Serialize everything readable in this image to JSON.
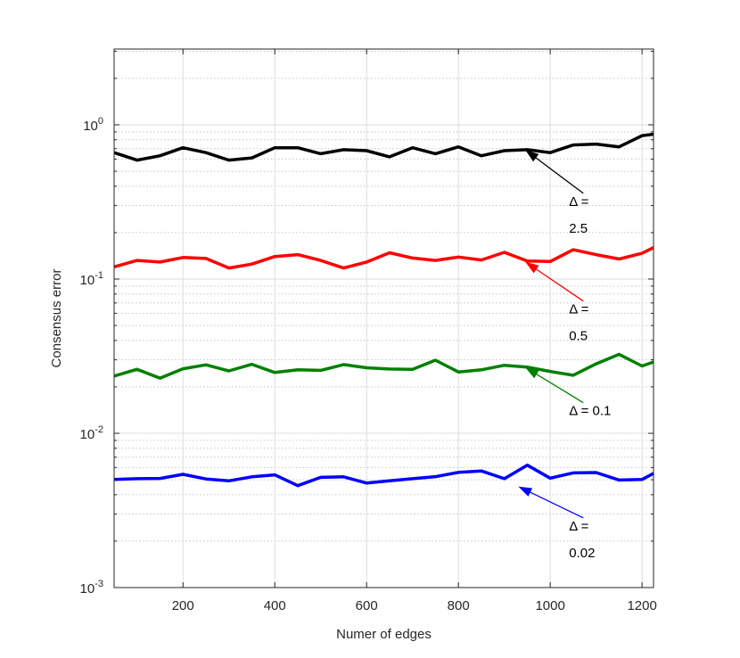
{
  "chart_data": {
    "type": "line",
    "xlabel": "Numer of edges",
    "ylabel": "Consensus error",
    "xlim": [
      50,
      1225
    ],
    "ylim": [
      0.001,
      3.1
    ],
    "yscale": "log",
    "grid": true,
    "minor_grid": true,
    "x_ticks": [
      200,
      400,
      600,
      800,
      1000,
      1200
    ],
    "x_tick_labels": [
      "200",
      "400",
      "600",
      "800",
      "1000",
      "1200"
    ],
    "y_ticks": [
      0.001,
      0.01,
      0.1,
      1
    ],
    "y_tick_labels": [
      {
        "base": "10",
        "exp": "-3"
      },
      {
        "base": "10",
        "exp": "-2"
      },
      {
        "base": "10",
        "exp": "-1"
      },
      {
        "base": "10",
        "exp": "0"
      }
    ],
    "x": [
      50,
      100,
      150,
      200,
      250,
      300,
      350,
      400,
      450,
      500,
      550,
      600,
      650,
      700,
      750,
      800,
      850,
      900,
      950,
      1000,
      1050,
      1100,
      1150,
      1200,
      1225
    ],
    "series": [
      {
        "color": "#000000",
        "values": [
          0.66,
          0.59,
          0.63,
          0.71,
          0.66,
          0.59,
          0.61,
          0.71,
          0.71,
          0.65,
          0.69,
          0.68,
          0.62,
          0.71,
          0.65,
          0.72,
          0.63,
          0.68,
          0.69,
          0.66,
          0.74,
          0.75,
          0.72,
          0.85,
          0.87
        ]
      },
      {
        "color": "#ff0000",
        "values": [
          0.12,
          0.132,
          0.129,
          0.138,
          0.136,
          0.118,
          0.125,
          0.14,
          0.144,
          0.132,
          0.118,
          0.129,
          0.148,
          0.137,
          0.132,
          0.139,
          0.133,
          0.149,
          0.131,
          0.13,
          0.155,
          0.144,
          0.135,
          0.147,
          0.16
        ]
      },
      {
        "color": "#008000",
        "values": [
          0.0235,
          0.026,
          0.0228,
          0.0262,
          0.0278,
          0.0254,
          0.028,
          0.0248,
          0.0258,
          0.0256,
          0.0279,
          0.0266,
          0.0261,
          0.026,
          0.0298,
          0.025,
          0.0258,
          0.0276,
          0.0269,
          0.0252,
          0.0238,
          0.0282,
          0.0325,
          0.0273,
          0.029
        ]
      },
      {
        "color": "#0000ff",
        "values": [
          0.00502,
          0.00508,
          0.0051,
          0.00542,
          0.00506,
          0.00492,
          0.00522,
          0.00538,
          0.00458,
          0.00518,
          0.00522,
          0.00476,
          0.00492,
          0.00508,
          0.00524,
          0.00558,
          0.0057,
          0.00508,
          0.00622,
          0.00512,
          0.00554,
          0.00557,
          0.00498,
          0.00502,
          0.0055
        ]
      }
    ],
    "annotations": [
      {
        "lines": [
          "Δ =",
          "2.5"
        ],
        "color": "#000000",
        "target": [
          948,
          0.68
        ],
        "tail": [
          1072,
          0.36
        ]
      },
      {
        "lines": [
          "Δ =",
          "0.5"
        ],
        "color": "#ff0000",
        "target": [
          948,
          0.128
        ],
        "tail": [
          1072,
          0.072
        ]
      },
      {
        "lines": [
          "Δ = 0.1"
        ],
        "color": "#008000",
        "target": [
          948,
          0.0265
        ],
        "tail": [
          1072,
          0.0158
        ]
      },
      {
        "lines": [
          "Δ =",
          "0.02"
        ],
        "color": "#0000ff",
        "target": [
          933,
          0.00448
        ],
        "tail": [
          1072,
          0.00283
        ]
      }
    ]
  }
}
